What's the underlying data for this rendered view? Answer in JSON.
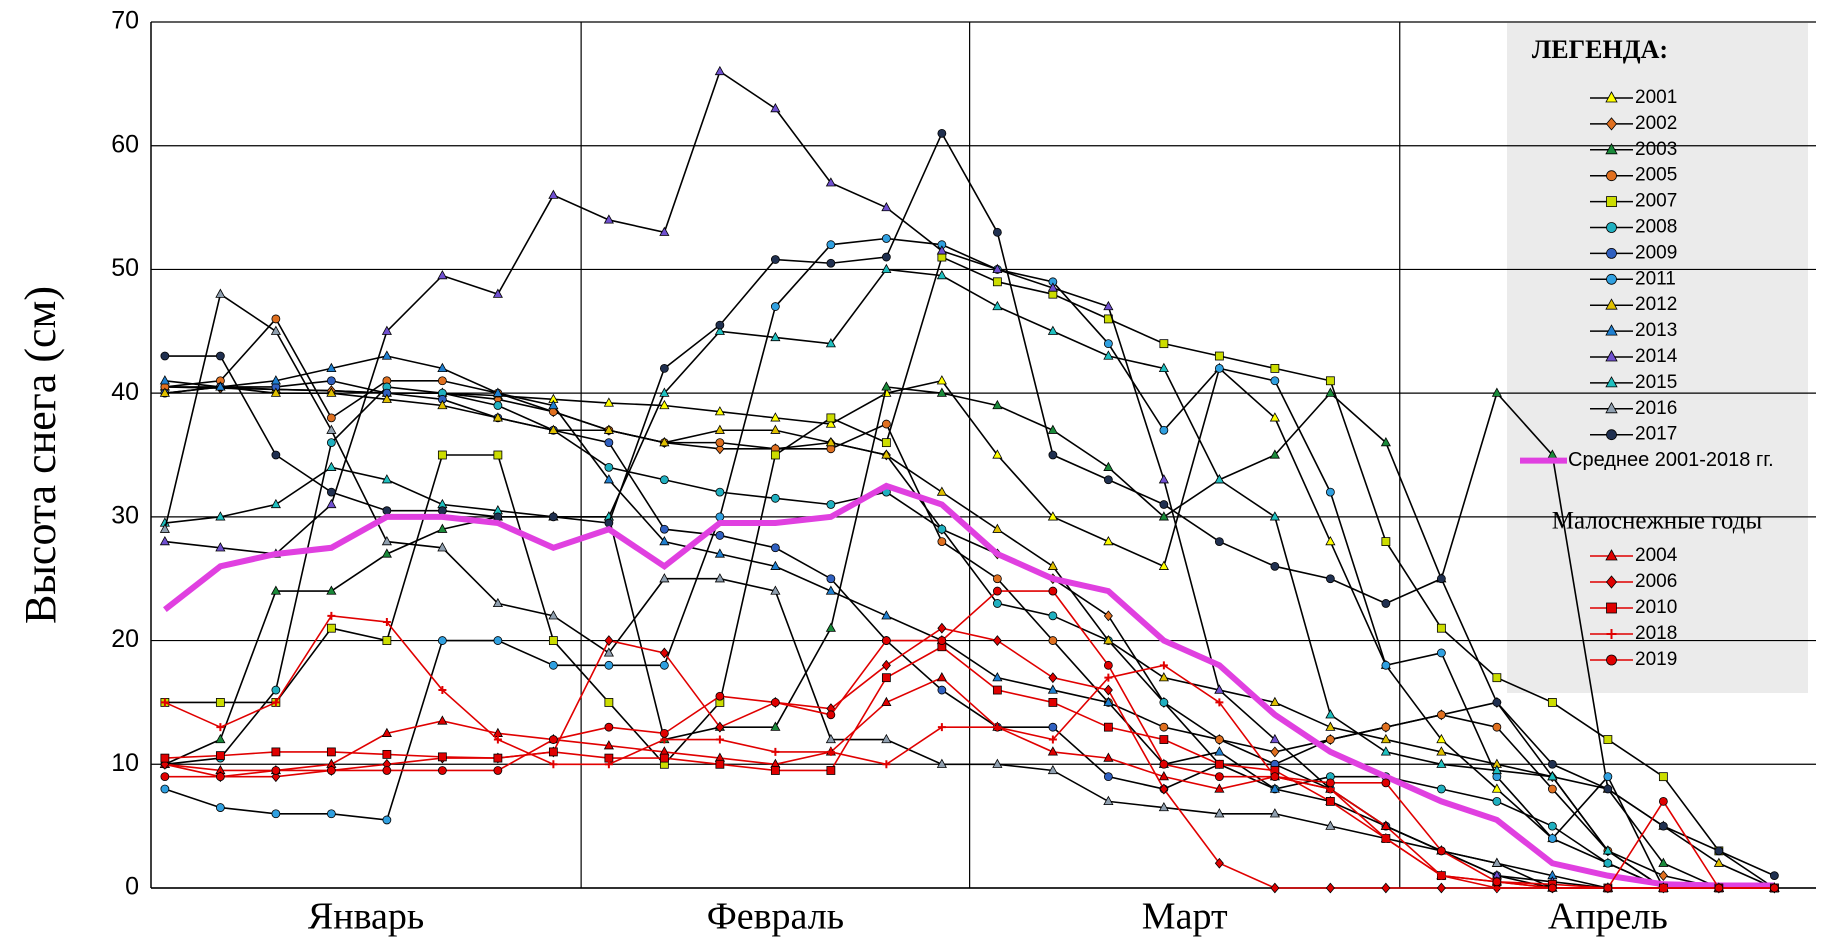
{
  "chart_data": {
    "type": "line",
    "y_label": "Высота снега (см)",
    "x": [
      1,
      5,
      9,
      13,
      17,
      21,
      25,
      29,
      33,
      37,
      41,
      45,
      49,
      53,
      57,
      61,
      65,
      69,
      73,
      77,
      81,
      85,
      89,
      93,
      97,
      101,
      105,
      109,
      113,
      117
    ],
    "xlim": [
      0,
      120
    ],
    "xticks": [
      {
        "value": 15.5,
        "label": "Январь"
      },
      {
        "value": 45,
        "label": "Февраль"
      },
      {
        "value": 74.5,
        "label": "Март"
      },
      {
        "value": 105,
        "label": "Апрель"
      }
    ],
    "month_bounds": [
      31,
      59,
      90
    ],
    "ylim": [
      0,
      70
    ],
    "yticks": [
      0,
      10,
      20,
      30,
      40,
      50,
      60,
      70
    ],
    "grid": true,
    "legend_title": "ЛЕГЕНДА:",
    "low_snow_title": "Малоснежные годы",
    "legend": "right",
    "series": [
      {
        "name": "2001",
        "color": "#ffff00",
        "marker": "triangle",
        "values": [
          40.5,
          40.5,
          40.3,
          40.2,
          40,
          40,
          39.8,
          39.5,
          39.2,
          39,
          38.5,
          38,
          37.5,
          40,
          41,
          35,
          30,
          28,
          26,
          42,
          38,
          28,
          18,
          12,
          8,
          4,
          2,
          0,
          0,
          0
        ]
      },
      {
        "name": "2002",
        "color": "#e07020",
        "marker": "diamond",
        "values": [
          40.5,
          40.4,
          40.3,
          40.2,
          40,
          40,
          39.5,
          38.5,
          37,
          36,
          35.5,
          35.5,
          36,
          35,
          29,
          27,
          25,
          22,
          15,
          12,
          11,
          12,
          13,
          14,
          15,
          9,
          3,
          1,
          0,
          0
        ]
      },
      {
        "name": "2003",
        "color": "#1a8a3a",
        "marker": "triangle",
        "values": [
          10,
          12,
          24,
          24,
          27,
          29,
          30,
          30,
          30,
          12,
          13,
          13,
          21,
          40.5,
          40,
          39,
          37,
          34,
          30,
          33,
          35,
          40,
          36,
          25,
          40,
          35,
          8,
          2,
          0,
          0
        ]
      },
      {
        "name": "2005",
        "color": "#e07020",
        "marker": "circle",
        "values": [
          40.5,
          41,
          46,
          38,
          41,
          41,
          40,
          38.5,
          37,
          36,
          36,
          35.5,
          35.5,
          37.5,
          28,
          25,
          20,
          15,
          13,
          12,
          10,
          12,
          13,
          14,
          13,
          8,
          3,
          0,
          0,
          0
        ]
      },
      {
        "name": "2007",
        "color": "#ccdd00",
        "marker": "square",
        "values": [
          15,
          15,
          15,
          21,
          20,
          35,
          35,
          20,
          15,
          10,
          15,
          35,
          38,
          36,
          51,
          49,
          48,
          46,
          44,
          43,
          42,
          41,
          28,
          21,
          17,
          15,
          12,
          9,
          3,
          0
        ]
      },
      {
        "name": "2008",
        "color": "#20b0c0",
        "marker": "circle",
        "values": [
          10,
          10.5,
          16,
          36,
          40.5,
          40,
          39,
          37,
          34,
          33,
          32,
          31.5,
          31,
          32,
          29,
          23,
          22,
          20,
          15,
          10,
          8,
          9,
          9,
          8,
          7,
          5,
          2,
          0,
          0,
          0
        ]
      },
      {
        "name": "2009",
        "color": "#3060c0",
        "marker": "circle",
        "values": [
          40,
          40.5,
          40.5,
          41,
          40,
          39.5,
          38,
          37,
          36,
          29,
          28.5,
          27.5,
          25,
          20,
          16,
          13,
          13,
          9,
          8,
          10,
          10,
          8,
          5,
          3,
          1,
          0,
          0,
          0,
          0,
          0
        ]
      },
      {
        "name": "2011",
        "color": "#30a0e0",
        "marker": "circle",
        "values": [
          8,
          6.5,
          6,
          6,
          5.5,
          20,
          20,
          18,
          18,
          18,
          30,
          47,
          52,
          52.5,
          52,
          50,
          49,
          44,
          37,
          42,
          41,
          32,
          18,
          19,
          9,
          4,
          9,
          0,
          0,
          0
        ]
      },
      {
        "name": "2012",
        "color": "#e0c000",
        "marker": "triangle",
        "values": [
          40,
          40.5,
          40,
          40,
          39.5,
          39,
          38,
          37,
          37,
          36,
          37,
          37,
          36,
          35,
          32,
          29,
          26,
          20,
          17,
          16,
          15,
          13,
          12,
          11,
          10,
          9,
          8,
          5,
          2,
          0
        ]
      },
      {
        "name": "2013",
        "color": "#2080d0",
        "marker": "triangle",
        "values": [
          41,
          40.5,
          41,
          42,
          43,
          42,
          40,
          39,
          33,
          28,
          27,
          26,
          24,
          22,
          20,
          17,
          16,
          15,
          10,
          11,
          8,
          7,
          5,
          3,
          2,
          1,
          0,
          0,
          0,
          0
        ]
      },
      {
        "name": "2014",
        "color": "#7050d0",
        "marker": "triangle",
        "values": [
          28,
          27.5,
          27,
          31,
          45,
          49.5,
          48,
          56,
          54,
          53,
          66,
          63,
          57,
          55,
          51.5,
          50,
          48.5,
          47,
          33,
          16,
          12,
          8,
          5,
          3,
          1,
          0.5,
          0,
          0,
          0,
          0
        ]
      },
      {
        "name": "2015",
        "color": "#20c0c0",
        "marker": "triangle",
        "values": [
          29.5,
          30,
          31,
          34,
          33,
          31,
          30.5,
          30,
          30,
          40,
          45,
          44.5,
          44,
          50,
          49.5,
          47,
          45,
          43,
          42,
          33,
          30,
          14,
          11,
          10,
          9.5,
          9,
          3,
          0,
          0,
          0
        ]
      },
      {
        "name": "2016",
        "color": "#90a0b0",
        "marker": "triangle",
        "values": [
          29,
          48,
          45,
          37,
          28,
          27.5,
          23,
          22,
          19,
          25,
          25,
          24,
          12,
          12,
          10,
          10,
          9.5,
          7,
          6.5,
          6,
          6,
          5,
          4,
          3,
          2,
          0,
          0,
          0,
          0,
          0
        ]
      },
      {
        "name": "2017",
        "color": "#203050",
        "marker": "circle",
        "values": [
          43,
          43,
          35,
          32,
          30.5,
          30.5,
          30,
          30,
          29.5,
          42,
          45.5,
          50.8,
          50.5,
          51,
          61,
          53,
          35,
          33,
          31,
          28,
          26,
          25,
          23,
          25,
          15,
          10,
          8,
          5,
          3,
          1
        ]
      },
      {
        "name": "Среднее 2001-2018 гг.",
        "color": "#e040e0",
        "marker": "none",
        "values": [
          22.5,
          26,
          27,
          27.5,
          30,
          30,
          29.5,
          27.5,
          29,
          26,
          29.5,
          29.5,
          30,
          32.5,
          31,
          27,
          25,
          24,
          20,
          18,
          14,
          11,
          9,
          7,
          5.5,
          2,
          1,
          0.3,
          0.2,
          0.2
        ]
      }
    ],
    "low_snow_series": [
      {
        "name": "2004",
        "color": "#e00000",
        "marker": "triangle",
        "values": [
          10,
          9.5,
          9.5,
          10,
          12.5,
          13.5,
          12.5,
          12,
          11.5,
          11,
          10.5,
          10,
          11,
          15,
          17,
          13,
          11,
          10.5,
          9,
          8,
          9,
          8,
          5,
          1,
          0.5,
          0,
          0,
          0,
          0,
          0
        ]
      },
      {
        "name": "2006",
        "color": "#e00000",
        "marker": "diamond",
        "values": [
          10,
          9,
          9,
          9.5,
          10,
          10.5,
          10.5,
          11,
          20,
          19,
          13,
          15,
          14.5,
          18,
          21,
          20,
          17,
          16,
          8,
          2,
          0,
          0,
          0,
          0,
          0,
          0,
          0,
          0,
          0,
          0
        ]
      },
      {
        "name": "2010",
        "color": "#e00000",
        "marker": "square",
        "values": [
          10.5,
          10.7,
          11,
          11,
          10.8,
          10.6,
          10.5,
          11,
          10.5,
          10.5,
          10,
          9.5,
          9.5,
          17,
          19.5,
          16,
          15,
          13,
          12,
          10,
          9.5,
          7,
          4,
          1,
          0.5,
          0.3,
          0,
          0,
          0,
          0
        ]
      },
      {
        "name": "2018",
        "color": "#e00000",
        "marker": "plus",
        "values": [
          15,
          13,
          15,
          22,
          21.5,
          16,
          12,
          10,
          10,
          12,
          12,
          11,
          11,
          10,
          13,
          13,
          12,
          17,
          18,
          15,
          9,
          8,
          4,
          1,
          0,
          0,
          0,
          0,
          0,
          0
        ]
      },
      {
        "name": "2019",
        "color": "#e00000",
        "marker": "circle",
        "values": [
          9,
          9,
          9.5,
          9.5,
          9.5,
          9.5,
          9.5,
          12,
          13,
          12.5,
          15.5,
          15,
          14,
          20,
          20,
          24,
          24,
          18,
          10,
          9,
          9,
          8.5,
          8.5,
          3,
          0.5,
          0,
          0,
          7,
          0,
          0
        ]
      }
    ]
  }
}
